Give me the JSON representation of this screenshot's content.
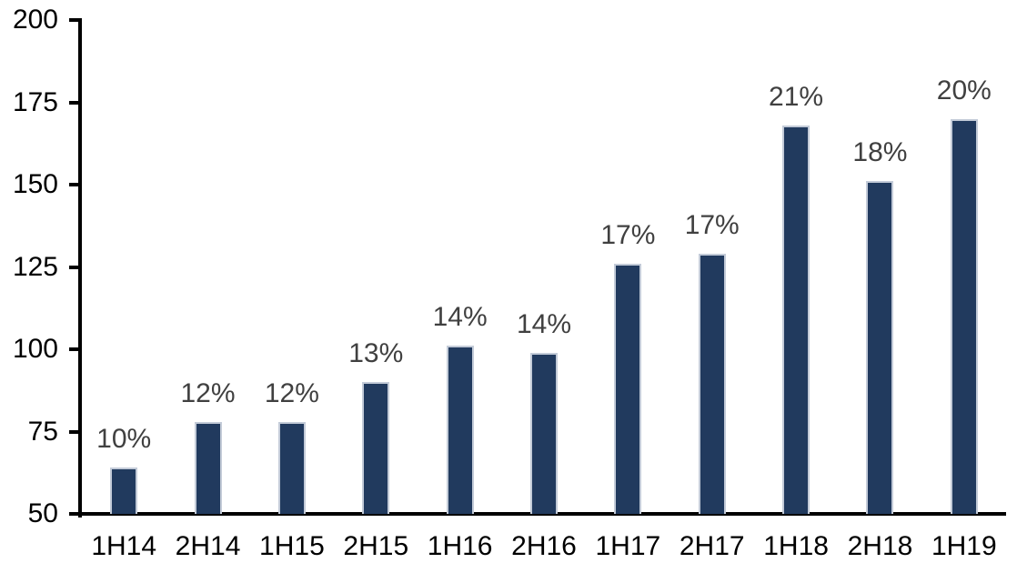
{
  "chart_data": {
    "type": "bar",
    "title": "",
    "xlabel": "",
    "ylabel": "",
    "categories": [
      "1H14",
      "2H14",
      "1H15",
      "2H15",
      "1H16",
      "2H16",
      "1H17",
      "2H17",
      "1H18",
      "2H18",
      "1H19"
    ],
    "values": [
      64,
      78,
      78,
      90,
      101,
      99,
      126,
      129,
      168,
      151,
      170
    ],
    "data_labels": [
      "10%",
      "12%",
      "12%",
      "13%",
      "14%",
      "14%",
      "17%",
      "17%",
      "21%",
      "18%",
      "20%"
    ],
    "ylim": [
      50,
      200
    ],
    "yticks": [
      50,
      75,
      100,
      125,
      150,
      175,
      200
    ],
    "grid": "off",
    "legend": "none",
    "colors": {
      "bar_fill": "#213A5E",
      "bar_border": "#C3CBD8",
      "data_label": "#404040",
      "axis_text": "#000000",
      "axis_line": "#000000",
      "background": "#FFFFFF"
    }
  }
}
